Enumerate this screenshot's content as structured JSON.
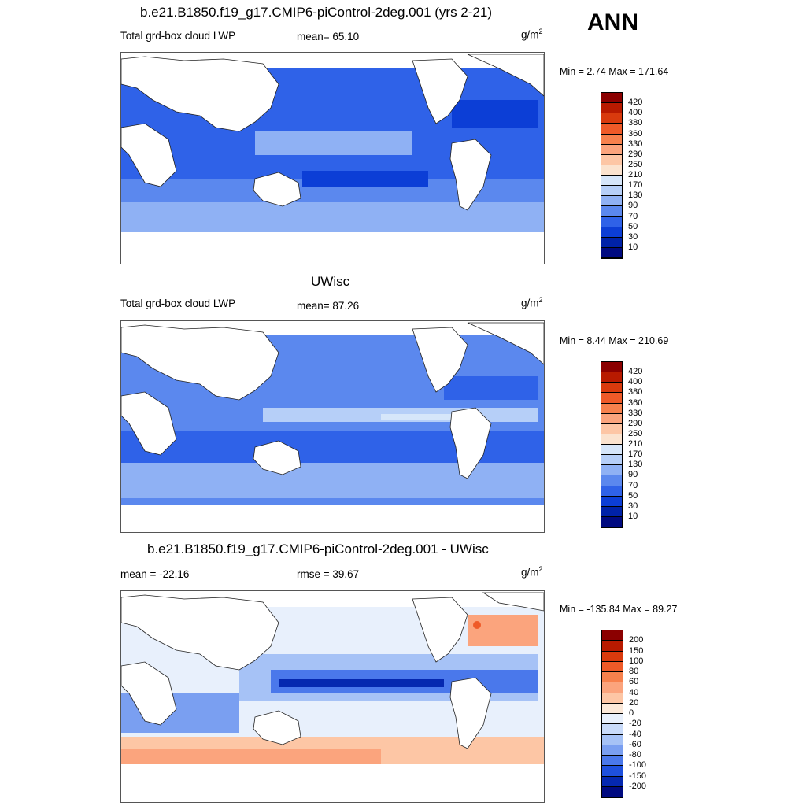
{
  "season": "ANN",
  "panels": [
    {
      "title": "b.e21.B1850.f19_g17.CMIP6-piControl-2deg.001 (yrs 2-21)",
      "variable": "Total grd-box cloud LWP",
      "stat": "mean=  65.10",
      "unit": "g/m",
      "unit_exp": "2",
      "minmax": "Min =   2.74 Max = 171.64",
      "colorbar": {
        "labels": [
          "420",
          "400",
          "380",
          "360",
          "330",
          "290",
          "250",
          "210",
          "170",
          "130",
          "90",
          "70",
          "50",
          "30",
          "10"
        ],
        "colors": [
          "#8b0000",
          "#b81a00",
          "#d93a0d",
          "#ef5a28",
          "#f7814d",
          "#fba47d",
          "#fdc6a5",
          "#fbe3cf",
          "#d6e6fa",
          "#b6cff8",
          "#8fb1f4",
          "#5b88ee",
          "#2f62e8",
          "#0c3ed6",
          "#0022a8",
          "#000a80"
        ]
      }
    },
    {
      "title": "UWisc",
      "variable": "Total grd-box cloud LWP",
      "stat": "mean=  87.26",
      "unit": "g/m",
      "unit_exp": "2",
      "minmax": "Min =   8.44 Max = 210.69",
      "colorbar": {
        "labels": [
          "420",
          "400",
          "380",
          "360",
          "330",
          "290",
          "250",
          "210",
          "170",
          "130",
          "90",
          "70",
          "50",
          "30",
          "10"
        ],
        "colors": [
          "#8b0000",
          "#b81a00",
          "#d93a0d",
          "#ef5a28",
          "#f7814d",
          "#fba47d",
          "#fdc6a5",
          "#fbe3cf",
          "#d6e6fa",
          "#b6cff8",
          "#8fb1f4",
          "#5b88ee",
          "#2f62e8",
          "#0c3ed6",
          "#0022a8",
          "#000a80"
        ]
      }
    },
    {
      "title": "b.e21.B1850.f19_g17.CMIP6-piControl-2deg.001 - UWisc",
      "variable": "mean = -22.16",
      "stat": "rmse =  39.67",
      "unit": "g/m",
      "unit_exp": "2",
      "minmax": "Min = -135.84 Max =  89.27",
      "colorbar": {
        "labels": [
          "200",
          "150",
          "100",
          "80",
          "60",
          "40",
          "20",
          "0",
          "-20",
          "-40",
          "-60",
          "-80",
          "-100",
          "-150",
          "-200"
        ],
        "colors": [
          "#8b0000",
          "#b81a00",
          "#d93a0d",
          "#ef5a28",
          "#f7814d",
          "#fba47d",
          "#fdc6a5",
          "#fbe8d8",
          "#e8f0fc",
          "#c9dbfa",
          "#a6c2f6",
          "#7a9ff1",
          "#4a78eb",
          "#1e50de",
          "#0528b0",
          "#000a80"
        ]
      }
    }
  ]
}
